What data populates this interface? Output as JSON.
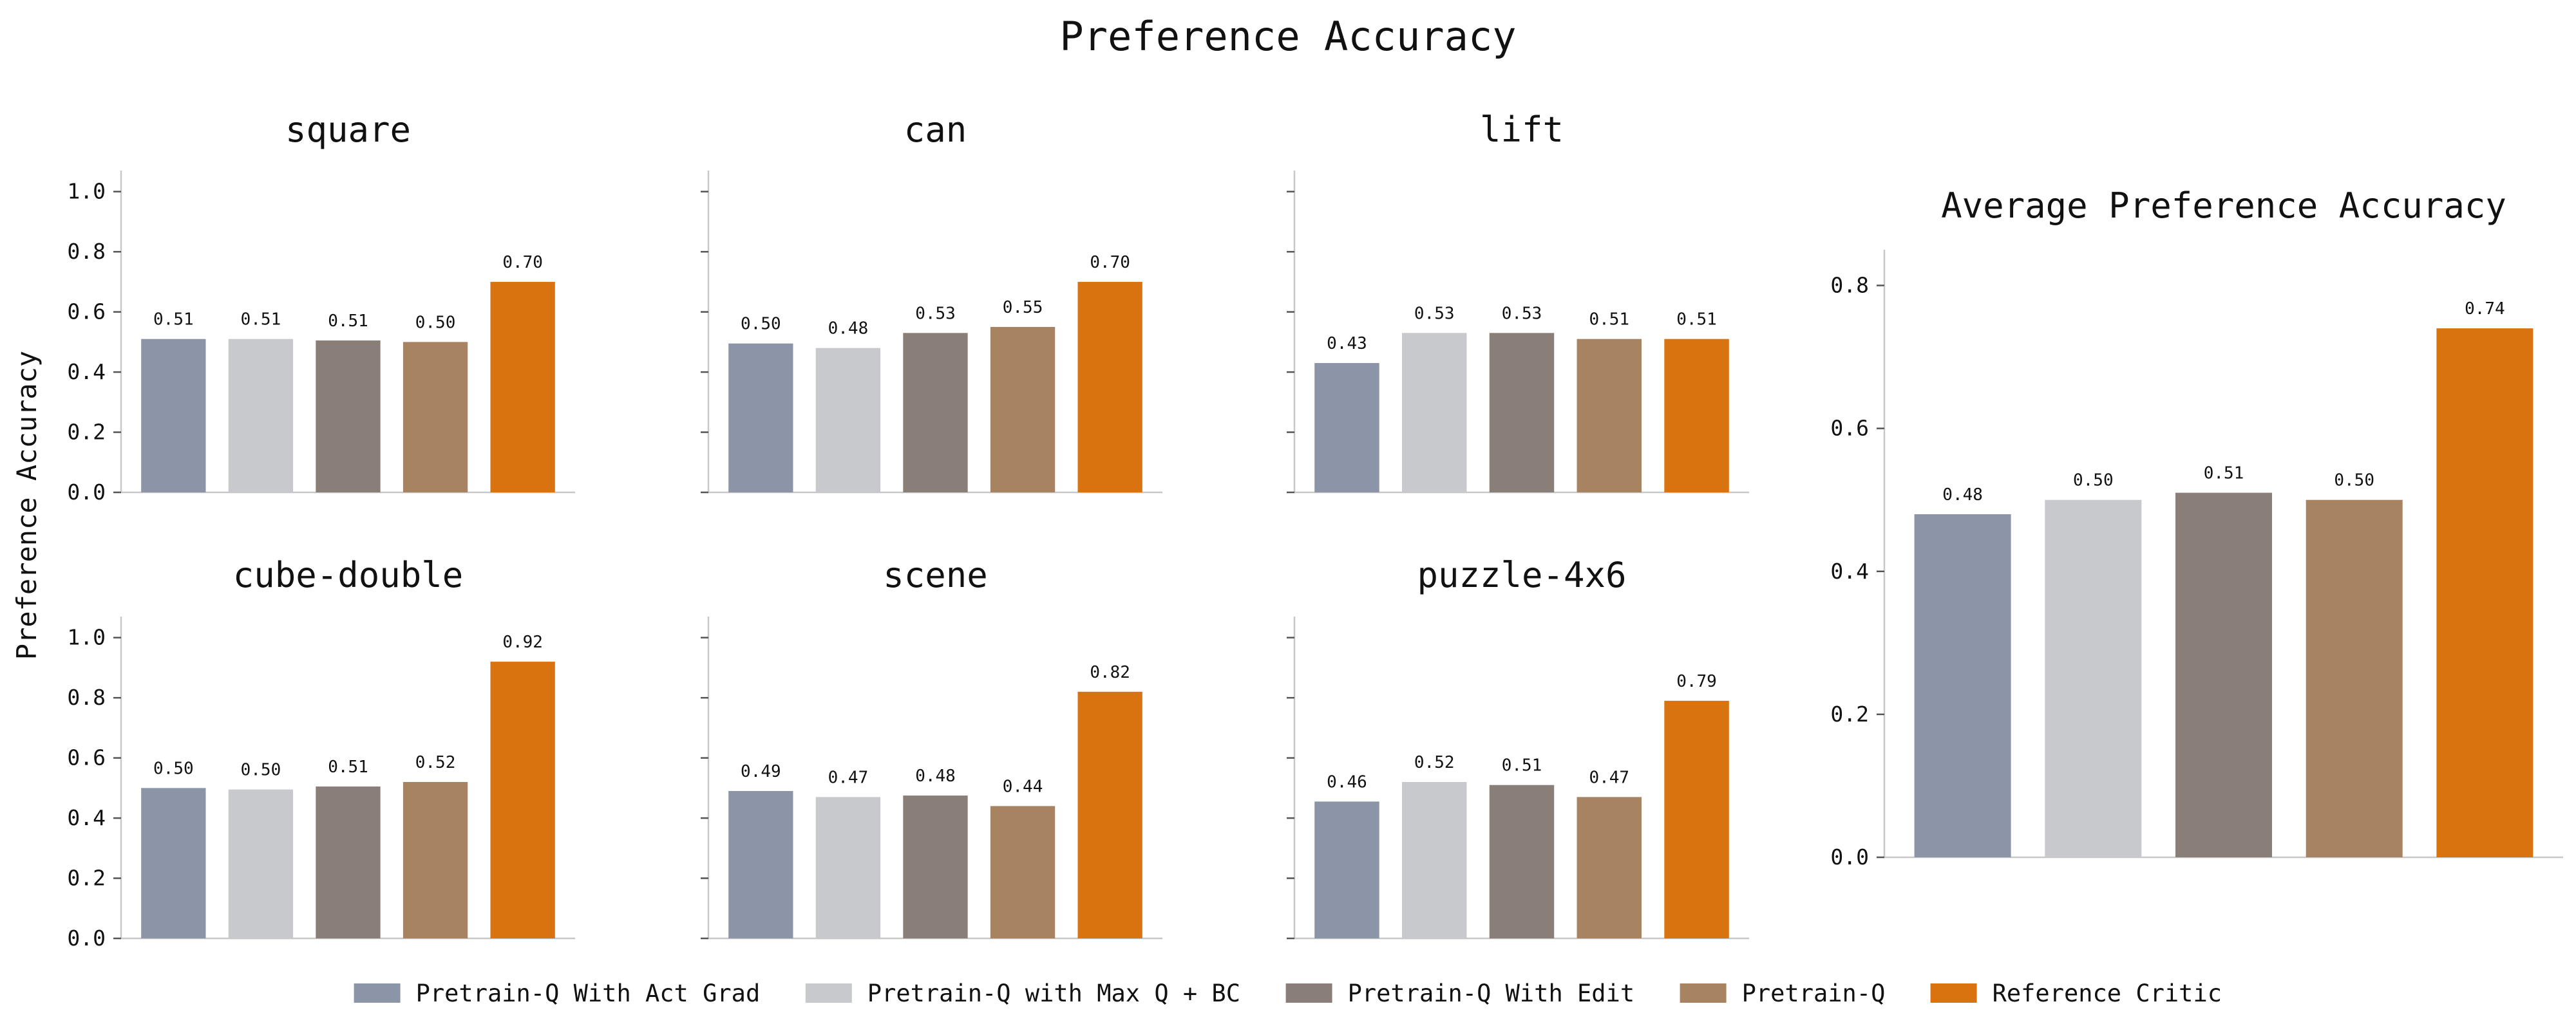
{
  "figure": {
    "title": "Preference Accuracy",
    "ylabel": "Preference Accuracy"
  },
  "legend": {
    "placement": "bottom-center",
    "items": [
      {
        "label": "Pretrain-Q With Act Grad",
        "color": "#8b95a7"
      },
      {
        "label": "Pretrain-Q with Max Q + BC",
        "color": "#c8c9cc"
      },
      {
        "label": "Pretrain-Q With Edit",
        "color": "#8a7f78"
      },
      {
        "label": "Pretrain-Q",
        "color": "#a88362"
      },
      {
        "label": "Reference Critic",
        "color": "#d9730f"
      }
    ]
  },
  "chart_data": [
    {
      "type": "bar",
      "title": "square",
      "categories": [
        "Pretrain-Q With Act Grad",
        "Pretrain-Q with Max Q + BC",
        "Pretrain-Q With Edit",
        "Pretrain-Q",
        "Reference Critic"
      ],
      "values": [
        0.51,
        0.51,
        0.505,
        0.5,
        0.7
      ],
      "value_labels": [
        "0.51",
        "0.51",
        "0.51",
        "0.50",
        "0.70"
      ],
      "ylim": [
        0,
        1.07
      ],
      "yticks": [
        "0.0",
        "0.2",
        "0.4",
        "0.6",
        "0.8",
        "1.0"
      ],
      "ytick_values": [
        0,
        0.2,
        0.4,
        0.6,
        0.8,
        1.0
      ],
      "show_ytick_labels": true
    },
    {
      "type": "bar",
      "title": "can",
      "categories": [
        "Pretrain-Q With Act Grad",
        "Pretrain-Q with Max Q + BC",
        "Pretrain-Q With Edit",
        "Pretrain-Q",
        "Reference Critic"
      ],
      "values": [
        0.495,
        0.48,
        0.53,
        0.55,
        0.7
      ],
      "value_labels": [
        "0.50",
        "0.48",
        "0.53",
        "0.55",
        "0.70"
      ],
      "ylim": [
        0,
        1.07
      ],
      "yticks": [
        "0.0",
        "0.2",
        "0.4",
        "0.6",
        "0.8",
        "1.0"
      ],
      "ytick_values": [
        0,
        0.2,
        0.4,
        0.6,
        0.8,
        1.0
      ],
      "show_ytick_labels": false
    },
    {
      "type": "bar",
      "title": "lift",
      "categories": [
        "Pretrain-Q With Act Grad",
        "Pretrain-Q with Max Q + BC",
        "Pretrain-Q With Edit",
        "Pretrain-Q",
        "Reference Critic"
      ],
      "values": [
        0.43,
        0.53,
        0.53,
        0.51,
        0.51
      ],
      "value_labels": [
        "0.43",
        "0.53",
        "0.53",
        "0.51",
        "0.51"
      ],
      "ylim": [
        0,
        1.07
      ],
      "yticks": [
        "0.0",
        "0.2",
        "0.4",
        "0.6",
        "0.8",
        "1.0"
      ],
      "ytick_values": [
        0,
        0.2,
        0.4,
        0.6,
        0.8,
        1.0
      ],
      "show_ytick_labels": false
    },
    {
      "type": "bar",
      "title": "cube-double",
      "categories": [
        "Pretrain-Q With Act Grad",
        "Pretrain-Q with Max Q + BC",
        "Pretrain-Q With Edit",
        "Pretrain-Q",
        "Reference Critic"
      ],
      "values": [
        0.5,
        0.495,
        0.505,
        0.52,
        0.92
      ],
      "value_labels": [
        "0.50",
        "0.50",
        "0.51",
        "0.52",
        "0.92"
      ],
      "ylim": [
        0,
        1.07
      ],
      "yticks": [
        "0.0",
        "0.2",
        "0.4",
        "0.6",
        "0.8",
        "1.0"
      ],
      "ytick_values": [
        0,
        0.2,
        0.4,
        0.6,
        0.8,
        1.0
      ],
      "show_ytick_labels": true
    },
    {
      "type": "bar",
      "title": "scene",
      "categories": [
        "Pretrain-Q With Act Grad",
        "Pretrain-Q with Max Q + BC",
        "Pretrain-Q With Edit",
        "Pretrain-Q",
        "Reference Critic"
      ],
      "values": [
        0.49,
        0.47,
        0.475,
        0.44,
        0.82
      ],
      "value_labels": [
        "0.49",
        "0.47",
        "0.48",
        "0.44",
        "0.82"
      ],
      "ylim": [
        0,
        1.07
      ],
      "yticks": [
        "0.0",
        "0.2",
        "0.4",
        "0.6",
        "0.8",
        "1.0"
      ],
      "ytick_values": [
        0,
        0.2,
        0.4,
        0.6,
        0.8,
        1.0
      ],
      "show_ytick_labels": false
    },
    {
      "type": "bar",
      "title": "puzzle-4x6",
      "categories": [
        "Pretrain-Q With Act Grad",
        "Pretrain-Q with Max Q + BC",
        "Pretrain-Q With Edit",
        "Pretrain-Q",
        "Reference Critic"
      ],
      "values": [
        0.455,
        0.52,
        0.51,
        0.47,
        0.79
      ],
      "value_labels": [
        "0.46",
        "0.52",
        "0.51",
        "0.47",
        "0.79"
      ],
      "ylim": [
        0,
        1.07
      ],
      "yticks": [
        "0.0",
        "0.2",
        "0.4",
        "0.6",
        "0.8",
        "1.0"
      ],
      "ytick_values": [
        0,
        0.2,
        0.4,
        0.6,
        0.8,
        1.0
      ],
      "show_ytick_labels": false
    },
    {
      "type": "bar",
      "title": "Average Preference Accuracy",
      "categories": [
        "Pretrain-Q With Act Grad",
        "Pretrain-Q with Max Q + BC",
        "Pretrain-Q With Edit",
        "Pretrain-Q",
        "Reference Critic"
      ],
      "values": [
        0.48,
        0.5,
        0.51,
        0.5,
        0.74
      ],
      "value_labels": [
        "0.48",
        "0.50",
        "0.51",
        "0.50",
        "0.74"
      ],
      "ylim": [
        0,
        0.85
      ],
      "yticks": [
        "0.0",
        "0.2",
        "0.4",
        "0.6",
        "0.8"
      ],
      "ytick_values": [
        0,
        0.2,
        0.4,
        0.6,
        0.8
      ],
      "show_ytick_labels": true
    }
  ]
}
